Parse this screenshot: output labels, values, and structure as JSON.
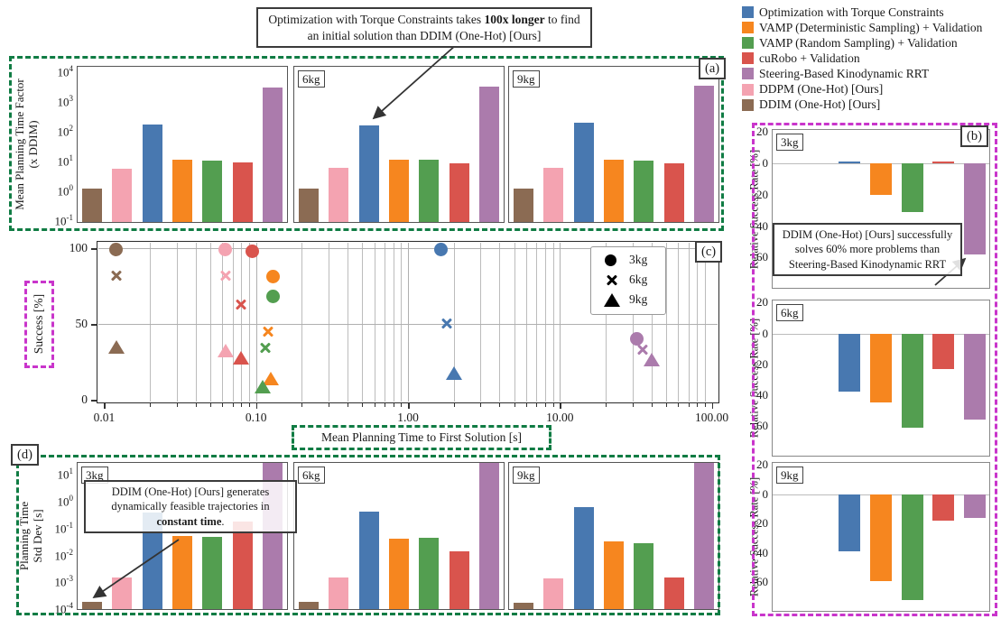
{
  "labels": {
    "a": "(a)",
    "b": "(b)",
    "c": "(c)",
    "d": "(d)"
  },
  "colors": {
    "blue": "#4878b0",
    "orange": "#f6861f",
    "green": "#539e50",
    "red": "#d9544d",
    "purple": "#ab7bac",
    "pink": "#f4a3b1",
    "brown": "#8b6b53"
  },
  "accents": {
    "dashed_green": "#107c44",
    "dashed_magenta": "#c935cb",
    "annotation_border": "#3b3b3b",
    "grid": "#bcbcbc",
    "arrow": "#333333"
  },
  "legend": {
    "items": [
      {
        "label": "Optimization with Torque Constraints",
        "color": "blue"
      },
      {
        "label": "VAMP (Deterministic Sampling) + Validation",
        "color": "orange"
      },
      {
        "label": "VAMP (Random Sampling) + Validation",
        "color": "green"
      },
      {
        "label": "cuRobo + Validation",
        "color": "red"
      },
      {
        "label": "Steering-Based Kinodynamic RRT",
        "color": "purple"
      },
      {
        "label": "DDPM (One-Hot) [Ours]",
        "color": "pink"
      },
      {
        "label": "DDIM (One-Hot) [Ours]",
        "color": "brown"
      }
    ]
  },
  "annotations": {
    "top": {
      "pre": "Optimization with Torque Constraints takes ",
      "bold": "100x longer",
      "post": " to find an initial solution than DDIM (One-Hot) [Ours]"
    },
    "b": {
      "text": "DDIM (One-Hot) [Ours] successfully solves 60% more problems than Steering-Based Kinodynamic RRT"
    },
    "d": {
      "pre": "DDIM (One-Hot) [Ours] generates dynamically feasible trajectories in ",
      "bold": "constant time",
      "post": "."
    }
  },
  "chart_data": {
    "bar_order": [
      "brown",
      "pink",
      "blue",
      "orange",
      "green",
      "red",
      "purple"
    ],
    "bar_order_methods": [
      "DDIM (One-Hot) [Ours]",
      "DDPM (One-Hot) [Ours]",
      "Optimization with Torque Constraints",
      "VAMP (Deterministic Sampling) + Validation",
      "VAMP (Random Sampling) + Validation",
      "cuRobo + Validation",
      "Steering-Based Kinodynamic RRT"
    ],
    "a": {
      "type": "bar",
      "yscale": "log",
      "ylabel_lines": [
        "Mean Planning Time Factor",
        "(x DDIM)"
      ],
      "ytick_exponents": [
        4,
        3,
        2,
        1,
        0,
        -1
      ],
      "ylim": [
        0.03,
        10000
      ],
      "panels": [
        {
          "label": "",
          "values": [
            1.0,
            4.8,
            140,
            9.3,
            9.0,
            7.5,
            2500
          ]
        },
        {
          "label": "6kg",
          "values": [
            1.0,
            4.9,
            135,
            9.5,
            9.5,
            7.0,
            2700
          ]
        },
        {
          "label": "9kg",
          "values": [
            1.0,
            4.9,
            160,
            9.5,
            8.8,
            7.0,
            2900
          ]
        }
      ]
    },
    "b": {
      "type": "bar",
      "ylabel": "Relative Success Rate [%]",
      "yticks": [
        20,
        0,
        -20,
        -40,
        -60
      ],
      "ylim": [
        22,
        -80
      ],
      "panels": [
        {
          "label": "3kg",
          "values": [
            0,
            0,
            1,
            -20,
            -31,
            1,
            -58
          ]
        },
        {
          "label": "6kg",
          "values": [
            0,
            0,
            -38,
            -45,
            -61,
            -23,
            -56
          ]
        },
        {
          "label": "9kg",
          "values": [
            0,
            0,
            -39,
            -59,
            -72,
            -18,
            -16
          ]
        }
      ]
    },
    "c": {
      "type": "scatter",
      "xscale": "log",
      "xlabel": "Mean Planning Time to First Solution [s]",
      "ylabel": "Success [%]",
      "xtick_labels": [
        "0.01",
        "0.10",
        "1.00",
        "10.00",
        "100.00"
      ],
      "xticks": [
        0.01,
        0.1,
        1,
        10,
        100
      ],
      "yticks": [
        0,
        50,
        100
      ],
      "marker_legend": [
        {
          "marker": "circle",
          "label": "3kg"
        },
        {
          "marker": "x",
          "label": "6kg"
        },
        {
          "marker": "triangle",
          "label": "9kg"
        }
      ],
      "series": [
        {
          "method": "DDIM (One-Hot) [Ours]",
          "color": "brown",
          "points": [
            {
              "load": "3kg",
              "x": 0.012,
              "y": 99
            },
            {
              "load": "6kg",
              "x": 0.012,
              "y": 82
            },
            {
              "load": "9kg",
              "x": 0.012,
              "y": 35
            }
          ]
        },
        {
          "method": "DDPM (One-Hot) [Ours]",
          "color": "pink",
          "points": [
            {
              "load": "3kg",
              "x": 0.063,
              "y": 99
            },
            {
              "load": "6kg",
              "x": 0.063,
              "y": 82
            },
            {
              "load": "9kg",
              "x": 0.063,
              "y": 33
            }
          ]
        },
        {
          "method": "cuRobo + Validation",
          "color": "red",
          "points": [
            {
              "load": "3kg",
              "x": 0.095,
              "y": 98
            },
            {
              "load": "6kg",
              "x": 0.08,
              "y": 63
            },
            {
              "load": "9kg",
              "x": 0.08,
              "y": 28
            }
          ]
        },
        {
          "method": "VAMP (Deterministic Sampling) + Validation",
          "color": "orange",
          "points": [
            {
              "load": "3kg",
              "x": 0.13,
              "y": 81
            },
            {
              "load": "6kg",
              "x": 0.12,
              "y": 45
            },
            {
              "load": "9kg",
              "x": 0.125,
              "y": 14
            }
          ]
        },
        {
          "method": "VAMP (Random Sampling) + Validation",
          "color": "green",
          "points": [
            {
              "load": "3kg",
              "x": 0.13,
              "y": 68
            },
            {
              "load": "6kg",
              "x": 0.115,
              "y": 34
            },
            {
              "load": "9kg",
              "x": 0.11,
              "y": 9
            }
          ]
        },
        {
          "method": "Optimization with Torque Constraints",
          "color": "blue",
          "points": [
            {
              "load": "3kg",
              "x": 1.65,
              "y": 99
            },
            {
              "load": "6kg",
              "x": 1.8,
              "y": 50
            },
            {
              "load": "9kg",
              "x": 2.0,
              "y": 18
            }
          ]
        },
        {
          "method": "Steering-Based Kinodynamic RRT",
          "color": "purple",
          "points": [
            {
              "load": "3kg",
              "x": 32,
              "y": 40
            },
            {
              "load": "6kg",
              "x": 35,
              "y": 33
            },
            {
              "load": "9kg",
              "x": 40,
              "y": 27
            }
          ]
        }
      ]
    },
    "d": {
      "type": "bar",
      "yscale": "log",
      "ylabel_lines": [
        "Planning Time",
        "Std Dev [s]"
      ],
      "ytick_exponents": [
        1,
        0,
        -1,
        -2,
        -3,
        -4
      ],
      "ylim": [
        0.0001,
        30
      ],
      "panels": [
        {
          "label": "3kg",
          "values": [
            0.00015,
            0.0012,
            0.32,
            0.042,
            0.038,
            0.14,
            22
          ]
        },
        {
          "label": "6kg",
          "values": [
            0.00015,
            0.0012,
            0.35,
            0.034,
            0.037,
            0.011,
            23
          ]
        },
        {
          "label": "9kg",
          "values": [
            0.00014,
            0.0011,
            0.5,
            0.027,
            0.022,
            0.0012,
            23
          ]
        }
      ]
    }
  }
}
